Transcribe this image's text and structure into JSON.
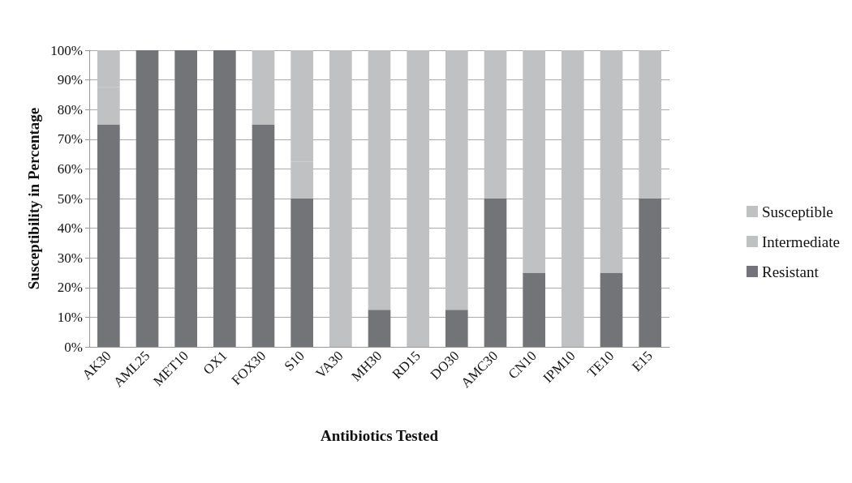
{
  "chart_data": {
    "type": "bar",
    "stacked": true,
    "xlabel": "Antibiotics Tested",
    "ylabel": "Susceptibility in Percentage",
    "categories": [
      "AK30",
      "AML25",
      "MET10",
      "OX1",
      "FOX30",
      "S10",
      "VA30",
      "MH30",
      "RD15",
      "DO30",
      "AMC30",
      "CN10",
      "IPM10",
      "TE10",
      "E15"
    ],
    "series": [
      {
        "name": "Resistant",
        "color": "#737478",
        "values": [
          75,
          100,
          100,
          100,
          75,
          50,
          0,
          12.5,
          0,
          12.5,
          50,
          25,
          0,
          25,
          50
        ]
      },
      {
        "name": "Intermediate",
        "color": "#c0c1c3",
        "values": [
          12.5,
          0,
          0,
          0,
          0,
          12.5,
          0,
          0,
          0,
          0,
          0,
          0,
          0,
          0,
          0
        ]
      },
      {
        "name": "Susceptible",
        "color": "#c0c1c3",
        "values": [
          12.5,
          0,
          0,
          0,
          25,
          37.5,
          100,
          87.5,
          100,
          87.5,
          50,
          75,
          100,
          75,
          50
        ]
      }
    ],
    "ylim": [
      0,
      100
    ],
    "yticks": [
      {
        "value": 0,
        "label": "0%"
      },
      {
        "value": 10,
        "label": "10%"
      },
      {
        "value": 20,
        "label": "20%"
      },
      {
        "value": 30,
        "label": "30%"
      },
      {
        "value": 40,
        "label": "40%"
      },
      {
        "value": 50,
        "label": "50%"
      },
      {
        "value": 60,
        "label": "60%"
      },
      {
        "value": 70,
        "label": "70%"
      },
      {
        "value": 80,
        "label": "80%"
      },
      {
        "value": 90,
        "label": "90%"
      },
      {
        "value": 100,
        "label": "100%"
      }
    ],
    "grid": "y",
    "legend": "right"
  }
}
